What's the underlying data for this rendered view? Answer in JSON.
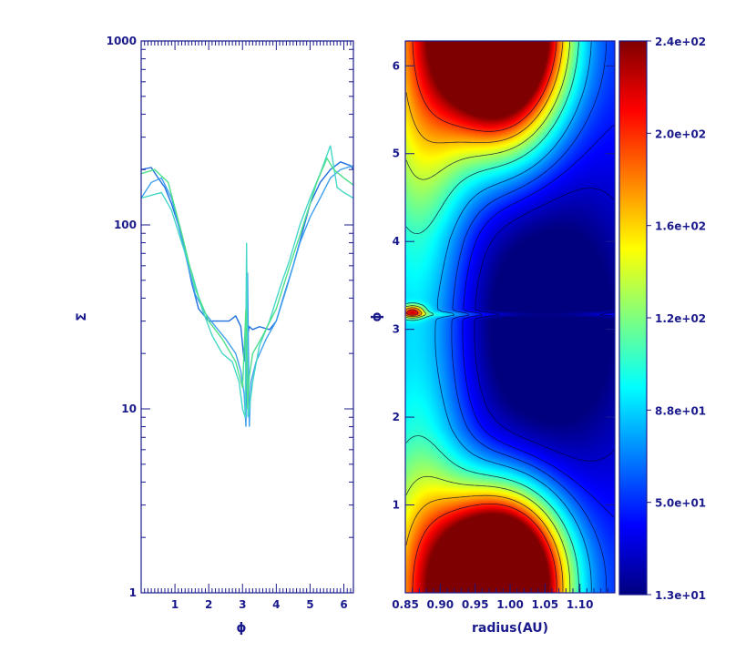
{
  "chart_data": [
    {
      "type": "line",
      "title": "",
      "xlabel": "ϕ",
      "ylabel": "Σ",
      "xlim": [
        0,
        6.283
      ],
      "ylim": [
        1,
        1000
      ],
      "yscale": "log",
      "xticks": [
        "1",
        "2",
        "3",
        "4",
        "5",
        "6"
      ],
      "yticks": [
        "1",
        "10",
        "100",
        "1000"
      ],
      "grid": false,
      "series": [
        {
          "color": "#1e6fe0",
          "x": [
            0.0,
            0.3,
            0.5,
            0.7,
            0.9,
            1.1,
            1.3,
            1.5,
            1.7,
            2.0,
            2.3,
            2.6,
            2.8,
            2.95,
            3.05,
            3.1,
            3.15,
            3.2,
            3.3,
            3.5,
            3.8,
            4.0,
            4.2,
            4.5,
            4.8,
            5.0,
            5.3,
            5.6,
            5.9,
            6.2,
            6.28
          ],
          "y": [
            200,
            205,
            180,
            160,
            130,
            100,
            72,
            48,
            35,
            30,
            30,
            30,
            32,
            28,
            18,
            30,
            25,
            28,
            27,
            28,
            27,
            30,
            40,
            60,
            95,
            130,
            170,
            200,
            220,
            210,
            200
          ]
        },
        {
          "color": "#3fa0f0",
          "x": [
            0.0,
            0.3,
            0.6,
            0.9,
            1.1,
            1.3,
            1.6,
            1.9,
            2.2,
            2.5,
            2.8,
            2.95,
            3.05,
            3.1,
            3.15,
            3.2,
            3.25,
            3.4,
            3.7,
            4.0,
            4.3,
            4.7,
            5.0,
            5.3,
            5.6,
            5.9,
            6.28
          ],
          "y": [
            140,
            170,
            180,
            140,
            100,
            70,
            42,
            33,
            28,
            24,
            20,
            16,
            12,
            8,
            55,
            8,
            14,
            18,
            24,
            30,
            45,
            80,
            110,
            140,
            180,
            200,
            210
          ]
        },
        {
          "color": "#45d8c8",
          "x": [
            0.0,
            0.3,
            0.6,
            0.9,
            1.2,
            1.5,
            1.8,
            2.1,
            2.4,
            2.7,
            2.9,
            3.0,
            3.08,
            3.12,
            3.16,
            3.2,
            3.3,
            3.5,
            3.8,
            4.1,
            4.4,
            4.7,
            5.0,
            5.3,
            5.5,
            5.6,
            5.8,
            6.0,
            6.28
          ],
          "y": [
            140,
            145,
            150,
            120,
            80,
            55,
            35,
            25,
            20,
            18,
            14,
            10,
            9,
            80,
            9,
            10,
            14,
            22,
            30,
            45,
            65,
            100,
            140,
            190,
            240,
            270,
            160,
            150,
            140
          ]
        },
        {
          "color": "#4ee08a",
          "x": [
            0.0,
            0.4,
            0.8,
            1.2,
            1.6,
            2.0,
            2.4,
            2.8,
            3.0,
            3.1,
            3.15,
            3.2,
            3.3,
            3.6,
            4.0,
            4.4,
            4.8,
            5.2,
            5.5,
            5.7,
            6.0,
            6.28
          ],
          "y": [
            190,
            200,
            170,
            90,
            45,
            30,
            24,
            18,
            13,
            35,
            10,
            15,
            20,
            25,
            35,
            60,
            100,
            170,
            230,
            200,
            180,
            165
          ]
        }
      ]
    },
    {
      "type": "heatmap",
      "title": "",
      "xlabel": "radius(AU)",
      "ylabel": "ϕ",
      "xlim": [
        0.85,
        1.15
      ],
      "ylim": [
        0,
        6.283
      ],
      "xticks": [
        "0.85",
        "0.90",
        "0.95",
        "1.00",
        "1.05",
        "1.10"
      ],
      "yticks": [
        "1",
        "2",
        "3",
        "4",
        "5",
        "6"
      ],
      "colorscale": "jet",
      "value_range": [
        13,
        240
      ],
      "colorbar_ticks": [
        "1.3e+01",
        "5.0e+01",
        "8.8e+01",
        "1.2e+02",
        "1.6e+02",
        "2.0e+02",
        "2.4e+02"
      ],
      "background": 48,
      "features": [
        {
          "r": 0.985,
          "phi": 6.0,
          "peak": 220,
          "sigma_r": 0.06,
          "sigma_phi": 0.75
        },
        {
          "r": 0.985,
          "phi": 0.3,
          "peak": 215,
          "sigma_r": 0.06,
          "sigma_phi": 0.6
        },
        {
          "r": 0.87,
          "phi": 0.9,
          "peak": 70,
          "sigma_r": 0.05,
          "sigma_phi": 1.4
        },
        {
          "r": 0.87,
          "phi": 5.0,
          "peak": 75,
          "sigma_r": 0.05,
          "sigma_phi": 1.5
        },
        {
          "r": 1.05,
          "phi": 3.5,
          "peak": -30,
          "sigma_r": 0.1,
          "sigma_phi": 1.2
        },
        {
          "r": 1.05,
          "phi": 2.6,
          "peak": -30,
          "sigma_r": 0.1,
          "sigma_phi": 1.2
        },
        {
          "r": 0.86,
          "phi": 3.2,
          "peak": 120,
          "sigma_r": 0.012,
          "sigma_phi": 0.05
        }
      ]
    }
  ]
}
